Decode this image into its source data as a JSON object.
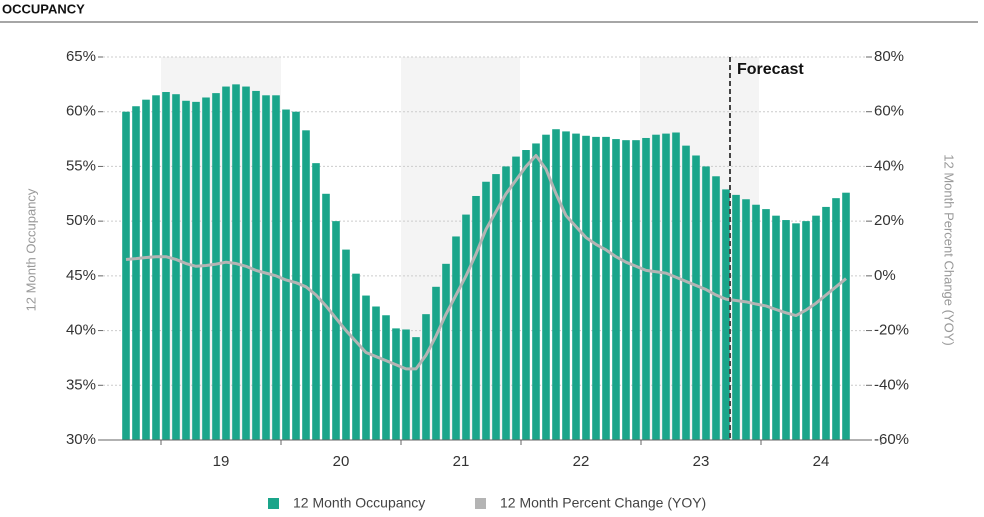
{
  "title": "OCCUPANCY",
  "chart_data": {
    "type": "bar_line",
    "x_labels": [
      "19",
      "20",
      "21",
      "22",
      "23",
      "24"
    ],
    "categories": [
      null,
      null,
      null,
      null,
      null,
      null,
      null,
      null,
      null,
      null,
      null,
      null,
      null,
      null,
      null,
      null,
      null,
      null,
      null,
      null,
      null,
      null,
      null,
      null,
      null,
      null,
      null,
      null,
      null,
      null,
      null,
      null,
      null,
      null,
      null,
      null,
      null,
      null,
      null,
      null,
      null,
      null,
      null,
      null,
      null,
      null,
      null,
      null,
      null,
      null,
      null,
      null,
      null,
      null,
      null,
      null,
      null,
      null,
      null,
      null,
      null,
      null,
      null,
      null,
      null,
      null,
      null,
      null,
      null,
      null,
      null,
      null,
      null
    ],
    "ylabel": "12 Month Occupancy",
    "y2label": "12 Month Percent Change (YOY)",
    "ylim": [
      30,
      65
    ],
    "yticks": [
      {
        "value": 30,
        "label": "30%"
      },
      {
        "value": 35,
        "label": "35%"
      },
      {
        "value": 40,
        "label": "40%"
      },
      {
        "value": 45,
        "label": "45%"
      },
      {
        "value": 50,
        "label": "50%"
      },
      {
        "value": 55,
        "label": "55%"
      },
      {
        "value": 60,
        "label": "60%"
      },
      {
        "value": 65,
        "label": "65%"
      }
    ],
    "y2lim": [
      -60,
      80
    ],
    "y2ticks": [
      {
        "value": -60,
        "label": "-60%"
      },
      {
        "value": -40,
        "label": "-40%"
      },
      {
        "value": -20,
        "label": "-20%"
      },
      {
        "value": 0,
        "label": "0%"
      },
      {
        "value": 20,
        "label": "20%"
      },
      {
        "value": 40,
        "label": "40%"
      },
      {
        "value": 60,
        "label": "60%"
      },
      {
        "value": 80,
        "label": "80%"
      }
    ],
    "grid": true,
    "annotation": {
      "text": "Forecast",
      "after_index": 60
    },
    "series": [
      {
        "name": "12 Month Occupancy",
        "type": "bar",
        "color": "#1aa58a",
        "values": [
          60.0,
          60.5,
          61.1,
          61.5,
          61.8,
          61.6,
          61.0,
          60.9,
          61.3,
          61.7,
          62.3,
          62.5,
          62.3,
          61.9,
          61.5,
          61.5,
          60.2,
          60.0,
          58.3,
          55.3,
          52.5,
          50.0,
          47.4,
          45.2,
          43.2,
          42.2,
          41.4,
          40.2,
          40.1,
          39.4,
          41.5,
          44.0,
          46.1,
          48.6,
          50.6,
          52.3,
          53.6,
          54.3,
          55.0,
          55.9,
          56.5,
          57.1,
          57.9,
          58.4,
          58.2,
          58.0,
          57.8,
          57.7,
          57.7,
          57.5,
          57.4,
          57.4,
          57.6,
          57.9,
          58.0,
          58.1,
          56.9,
          56.0,
          55.0,
          54.1,
          52.9,
          52.4,
          52.0,
          51.5,
          51.1,
          50.5,
          50.1,
          49.8,
          50.0,
          50.5,
          51.3,
          52.1,
          52.6
        ]
      },
      {
        "name": "12 Month Percent Change (YOY)",
        "type": "line",
        "axis": "y2",
        "color": "#b4b4b4",
        "values": [
          6,
          6.3,
          6.7,
          7,
          7,
          6,
          4.5,
          3.5,
          3.8,
          4.3,
          5,
          4.5,
          3.5,
          2,
          1,
          0,
          -1.5,
          -2.5,
          -4,
          -7,
          -11,
          -15.5,
          -20,
          -24,
          -28,
          -29.5,
          -31,
          -32.5,
          -34,
          -34,
          -29,
          -22,
          -14,
          -7,
          0,
          8,
          17,
          23.5,
          30,
          35,
          40,
          44,
          39,
          30,
          22,
          18,
          14,
          11.5,
          9.5,
          7,
          5,
          3.5,
          2,
          1.5,
          1,
          -0.5,
          -2,
          -3.5,
          -5,
          -7,
          -8.5,
          -9,
          -9.5,
          -10.3,
          -11,
          -12.3,
          -13.5,
          -14.5,
          -12.5,
          -10,
          -7,
          -4,
          -1
        ]
      }
    ]
  }
}
